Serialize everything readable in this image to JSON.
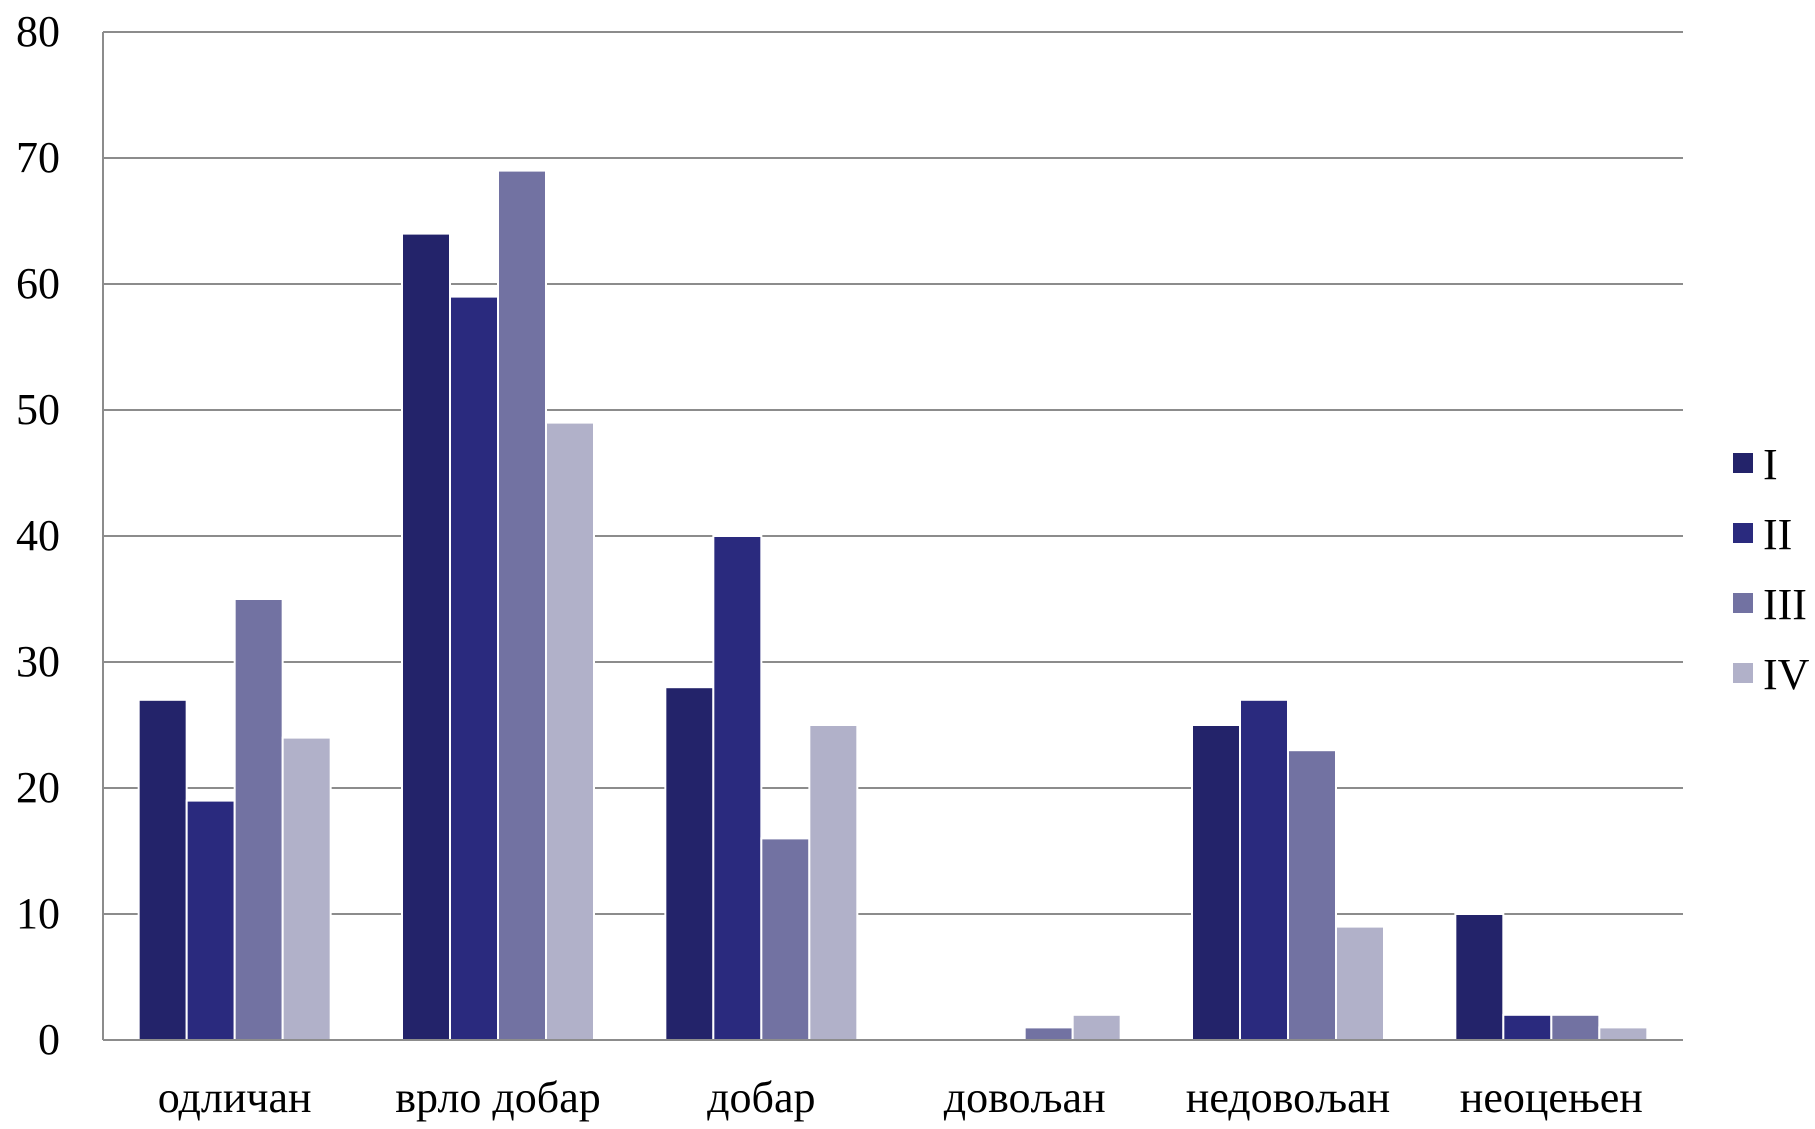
{
  "chart_data": {
    "type": "bar",
    "title": "",
    "xlabel": "",
    "ylabel": "",
    "categories": [
      "одличан",
      "врло добар",
      "добар",
      "довољан",
      "недовољан",
      "неоцењен"
    ],
    "series": [
      {
        "name": "I",
        "color": "#23236a",
        "values": [
          27,
          64,
          28,
          0,
          25,
          10
        ]
      },
      {
        "name": "II",
        "color": "#2a2a7e",
        "values": [
          19,
          59,
          40,
          0,
          27,
          2
        ]
      },
      {
        "name": "III",
        "color": "#7272a2",
        "values": [
          35,
          69,
          16,
          1,
          23,
          2
        ]
      },
      {
        "name": "IV",
        "color": "#b1b1c9",
        "values": [
          24,
          49,
          25,
          2,
          9,
          1
        ]
      }
    ],
    "ylim": [
      0,
      80
    ],
    "yticks": [
      0,
      10,
      20,
      30,
      40,
      50,
      60,
      70,
      80
    ],
    "grid": true,
    "legend_position": "right"
  }
}
